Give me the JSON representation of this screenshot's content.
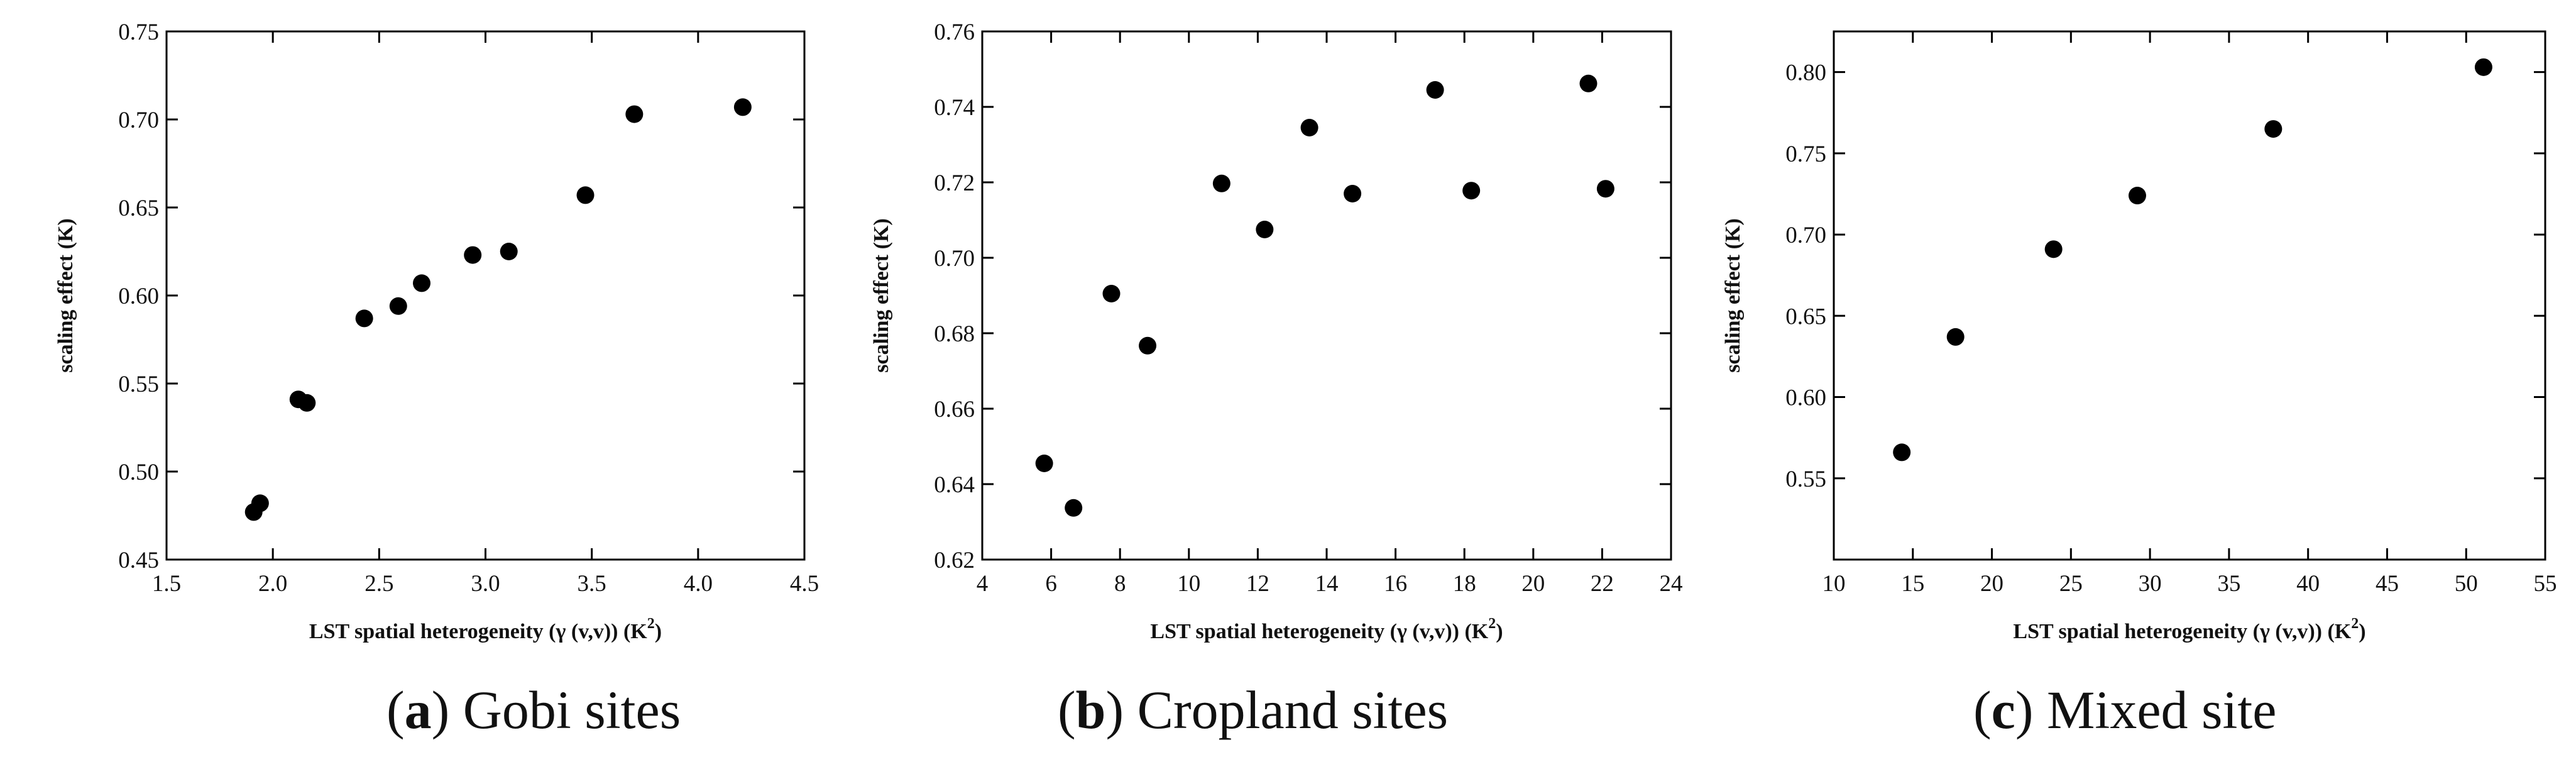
{
  "chart_data": [
    {
      "type": "scatter",
      "caption_letter": "a",
      "caption_text": "Gobi sites",
      "xlabel": "LST spatial heterogeneity (γ (v,v)) (K",
      "xlabel_sup": "2",
      "xlabel_end": ")",
      "ylabel": "scaling effect (K)",
      "xlim": [
        1.5,
        4.5
      ],
      "ylim": [
        0.45,
        0.75
      ],
      "xticks": [
        "1.5",
        "2.0",
        "2.5",
        "3.0",
        "3.5",
        "4.0",
        "4.5"
      ],
      "yticks": [
        "0.45",
        "0.50",
        "0.55",
        "0.60",
        "0.65",
        "0.70",
        "0.75"
      ],
      "x": [
        1.91,
        1.94,
        2.12,
        2.16,
        2.43,
        2.59,
        2.7,
        2.94,
        3.11,
        3.47,
        3.7,
        4.21
      ],
      "y": [
        0.477,
        0.482,
        0.541,
        0.539,
        0.587,
        0.594,
        0.607,
        0.623,
        0.625,
        0.657,
        0.703,
        0.707
      ]
    },
    {
      "type": "scatter",
      "caption_letter": "b",
      "caption_text": "Cropland sites",
      "xlabel": "LST spatial heterogeneity (γ (v,v)) (K",
      "xlabel_sup": "2",
      "xlabel_end": ")",
      "ylabel": "scaling effect (K)",
      "xlim": [
        4,
        24
      ],
      "ylim": [
        0.62,
        0.76
      ],
      "xticks": [
        "4",
        "6",
        "8",
        "10",
        "12",
        "14",
        "16",
        "18",
        "20",
        "22",
        "24"
      ],
      "yticks": [
        "0.62",
        "0.64",
        "0.66",
        "0.68",
        "0.70",
        "0.72",
        "0.74",
        "0.76"
      ],
      "x": [
        5.8,
        6.65,
        7.75,
        8.8,
        10.95,
        12.2,
        13.5,
        14.75,
        17.15,
        18.2,
        21.6,
        22.1
      ],
      "y": [
        0.6455,
        0.6337,
        0.6905,
        0.6767,
        0.7197,
        0.7075,
        0.7345,
        0.717,
        0.7445,
        0.7178,
        0.7462,
        0.7183
      ]
    },
    {
      "type": "scatter",
      "caption_letter": "c",
      "caption_text": "Mixed site",
      "xlabel": "LST spatial heterogeneity (γ (v,v)) (K",
      "xlabel_sup": "2",
      "xlabel_end": ")",
      "ylabel": "scaling effect (K)",
      "xlim": [
        10,
        55
      ],
      "ylim": [
        0.5,
        0.825
      ],
      "xticks": [
        "10",
        "15",
        "20",
        "25",
        "30",
        "35",
        "40",
        "45",
        "50",
        "55"
      ],
      "yticks": [
        "0.55",
        "0.60",
        "0.65",
        "0.70",
        "0.75",
        "0.80"
      ],
      "ytick_values": [
        0.55,
        0.6,
        0.65,
        0.7,
        0.75,
        0.8
      ],
      "x": [
        14.3,
        17.7,
        23.9,
        29.2,
        37.8,
        51.1
      ],
      "y": [
        0.566,
        0.637,
        0.691,
        0.724,
        0.765,
        0.803
      ]
    }
  ]
}
